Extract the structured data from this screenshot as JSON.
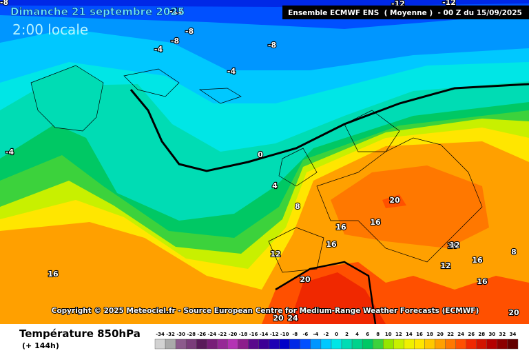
{
  "header": {
    "date": "Dimanche 21 septembre 2025",
    "time": "2:00 locale",
    "model": "Ensemble ECMWF ENS  ( Moyenne )  - 00 Z du 15/09/2025"
  },
  "copyright": "Copyright © 2025 Meteociel.fr - Source European Centre for Medium-Range Weather Forecasts (ECMWF)",
  "legend": {
    "title": "Température 850hPa",
    "subtitle": "(+ 144h)",
    "scale": [
      -34,
      -32,
      -30,
      -28,
      -26,
      -24,
      -22,
      -20,
      -18,
      -16,
      -14,
      -12,
      -10,
      -8,
      -6,
      -4,
      -2,
      0,
      2,
      4,
      6,
      8,
      10,
      12,
      14,
      16,
      18,
      20,
      22,
      24,
      26,
      28,
      30,
      32,
      34
    ],
    "colors": [
      "#d2d2d2",
      "#aaaaaa",
      "#8c5a8c",
      "#7a3c7a",
      "#5a1a5a",
      "#781e78",
      "#962896",
      "#b432b4",
      "#8c1e8c",
      "#5a0a8c",
      "#3c0096",
      "#1e00b4",
      "#0000c8",
      "#0028e6",
      "#0050ff",
      "#0096ff",
      "#00c8ff",
      "#00e6e6",
      "#00dcb4",
      "#00d28c",
      "#00c864",
      "#3cd23c",
      "#96e600",
      "#c8f000",
      "#f0f000",
      "#ffe600",
      "#ffc800",
      "#ffa000",
      "#ff7800",
      "#ff5000",
      "#f02800",
      "#d21400",
      "#b40000",
      "#8c0000",
      "#640000"
    ]
  },
  "map_labels": [
    "-8",
    "-12",
    "-8",
    "-4",
    "-8",
    "-8",
    "-4",
    "-12",
    "-12",
    "-4",
    "0",
    "4",
    "8",
    "16",
    "16",
    "16",
    "20",
    "12",
    "16",
    "12",
    "12",
    "16",
    "8",
    "16",
    "16",
    "20",
    "20",
    "24",
    "20"
  ]
}
